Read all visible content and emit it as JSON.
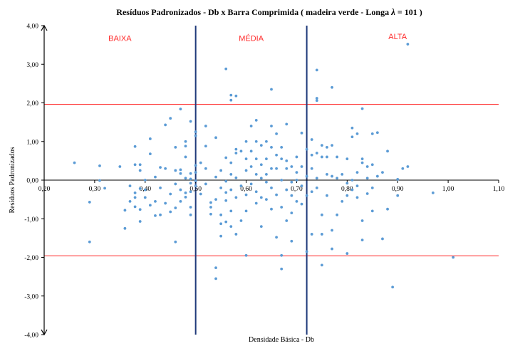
{
  "chart_data": {
    "type": "scatter",
    "title": "Resíduos Padronizados - Db x Barra Comprimida ( madeira verde - Longa",
    "title_symbol": "λ",
    "title_tail": " = 101 )",
    "xlabel": "Densidade Básica - Db",
    "ylabel": "Resíduos Padronizados",
    "xlim": [
      0.2,
      1.1
    ],
    "ylim": [
      -4,
      4
    ],
    "x_ticks": [
      "0,20",
      "0,30",
      "0,40",
      "0,50",
      "0,60",
      "0,70",
      "0,80",
      "0,90",
      "1,00",
      "1,10"
    ],
    "x_tick_values": [
      0.2,
      0.3,
      0.4,
      0.5,
      0.6,
      0.7,
      0.8,
      0.9,
      1.0,
      1.1
    ],
    "y_ticks": [
      "4,00",
      "3,00",
      "2,00",
      "1,00",
      "0,00",
      "-1,00",
      "-2,00",
      "-3,00",
      "-4,00"
    ],
    "y_tick_values": [
      4,
      3,
      2,
      1,
      0,
      -1,
      -2,
      -3,
      -4
    ],
    "grid": false,
    "reference_lines_y": [
      1.96,
      -1.96
    ],
    "reference_line_color": "#ff2020",
    "class_boundaries_x": [
      0.5,
      0.72
    ],
    "boundary_color": "#1f3a7a",
    "marker_color": "#5b9bd5",
    "zones": [
      "BAIXA",
      "MÉDIA",
      "ALTA"
    ],
    "series": [
      {
        "points": [
          [
            0.26,
            0.45
          ],
          [
            0.29,
            -0.57
          ],
          [
            0.29,
            -1.6
          ],
          [
            0.31,
            0.37
          ],
          [
            0.31,
            -0.01
          ],
          [
            0.32,
            -0.21
          ],
          [
            0.35,
            0.35
          ],
          [
            0.36,
            -0.78
          ],
          [
            0.36,
            -1.25
          ],
          [
            0.37,
            -0.15
          ],
          [
            0.37,
            -0.55
          ],
          [
            0.38,
            -0.69
          ],
          [
            0.38,
            0.87
          ],
          [
            0.38,
            0.4
          ],
          [
            0.38,
            -0.33
          ],
          [
            0.38,
            -0.45
          ],
          [
            0.39,
            0.4
          ],
          [
            0.39,
            0.25
          ],
          [
            0.39,
            -0.22
          ],
          [
            0.39,
            -0.76
          ],
          [
            0.39,
            -1.07
          ],
          [
            0.4,
            -0.25
          ],
          [
            0.4,
            -0.45
          ],
          [
            0.4,
            0.0
          ],
          [
            0.41,
            0.68
          ],
          [
            0.41,
            1.07
          ],
          [
            0.41,
            -0.65
          ],
          [
            0.42,
            0.08
          ],
          [
            0.42,
            -0.92
          ],
          [
            0.42,
            -0.55
          ],
          [
            0.43,
            0.33
          ],
          [
            0.43,
            -0.9
          ],
          [
            0.43,
            -0.2
          ],
          [
            0.44,
            1.43
          ],
          [
            0.44,
            0.3
          ],
          [
            0.44,
            -0.6
          ],
          [
            0.45,
            1.6
          ],
          [
            0.45,
            -0.82
          ],
          [
            0.45,
            -0.36
          ],
          [
            0.46,
            0.85
          ],
          [
            0.46,
            0.25
          ],
          [
            0.46,
            -0.1
          ],
          [
            0.46,
            -1.6
          ],
          [
            0.46,
            -0.72
          ],
          [
            0.47,
            1.84
          ],
          [
            0.47,
            0.17
          ],
          [
            0.47,
            0.27
          ],
          [
            0.47,
            -0.25
          ],
          [
            0.47,
            -0.55
          ],
          [
            0.48,
            1.0
          ],
          [
            0.48,
            0.6
          ],
          [
            0.48,
            0.88
          ],
          [
            0.48,
            0.05
          ],
          [
            0.48,
            -0.44
          ],
          [
            0.48,
            -0.33
          ],
          [
            0.49,
            1.52
          ],
          [
            0.49,
            0.17
          ],
          [
            0.49,
            0.03
          ],
          [
            0.49,
            -0.08
          ],
          [
            0.49,
            -0.3
          ],
          [
            0.49,
            -0.7
          ],
          [
            0.49,
            -0.9
          ],
          [
            0.5,
            1.25
          ],
          [
            0.5,
            1.15
          ],
          [
            0.5,
            0.38
          ],
          [
            0.5,
            0.2
          ],
          [
            0.5,
            -0.02
          ],
          [
            0.5,
            -0.15
          ],
          [
            0.51,
            0.45
          ],
          [
            0.51,
            -0.36
          ],
          [
            0.52,
            1.4
          ],
          [
            0.52,
            0.88
          ],
          [
            0.52,
            0.3
          ],
          [
            0.52,
            -0.1
          ],
          [
            0.53,
            -0.7
          ],
          [
            0.53,
            -0.88
          ],
          [
            0.53,
            -0.58
          ],
          [
            0.54,
            1.1
          ],
          [
            0.54,
            0.08
          ],
          [
            0.54,
            -0.5
          ],
          [
            0.54,
            -2.27
          ],
          [
            0.54,
            -2.55
          ],
          [
            0.55,
            0.25
          ],
          [
            0.55,
            -0.2
          ],
          [
            0.55,
            -0.9
          ],
          [
            0.55,
            -1.13
          ],
          [
            0.55,
            -1.45
          ],
          [
            0.56,
            2.88
          ],
          [
            0.56,
            0.58
          ],
          [
            0.56,
            -0.03
          ],
          [
            0.56,
            -0.32
          ],
          [
            0.56,
            -0.53
          ],
          [
            0.56,
            -1.08
          ],
          [
            0.57,
            0.45
          ],
          [
            0.57,
            2.2
          ],
          [
            0.57,
            2.07
          ],
          [
            0.57,
            0.15
          ],
          [
            0.57,
            -0.25
          ],
          [
            0.57,
            -0.8
          ],
          [
            0.57,
            -1.2
          ],
          [
            0.58,
            0.8
          ],
          [
            0.58,
            0.7
          ],
          [
            0.58,
            2.18
          ],
          [
            0.58,
            0.06
          ],
          [
            0.58,
            -0.45
          ],
          [
            0.58,
            -1.4
          ],
          [
            0.59,
            0.75
          ],
          [
            0.59,
            -0.15
          ],
          [
            0.59,
            -1.05
          ],
          [
            0.6,
            0.55
          ],
          [
            0.6,
            1.0
          ],
          [
            0.6,
            0.25
          ],
          [
            0.6,
            -0.38
          ],
          [
            0.6,
            -0.8
          ],
          [
            0.6,
            -1.95
          ],
          [
            0.61,
            1.4
          ],
          [
            0.61,
            0.35
          ],
          [
            0.61,
            0.75
          ],
          [
            0.61,
            -0.1
          ],
          [
            0.62,
            1.55
          ],
          [
            0.62,
            1.0
          ],
          [
            0.62,
            0.55
          ],
          [
            0.62,
            0.15
          ],
          [
            0.62,
            -0.3
          ],
          [
            0.62,
            -0.6
          ],
          [
            0.63,
            0.9
          ],
          [
            0.63,
            0.4
          ],
          [
            0.63,
            0.05
          ],
          [
            0.63,
            -0.45
          ],
          [
            0.63,
            -1.2
          ],
          [
            0.64,
            1.0
          ],
          [
            0.64,
            0.55
          ],
          [
            0.64,
            0.15
          ],
          [
            0.64,
            -0.05
          ],
          [
            0.64,
            -0.5
          ],
          [
            0.65,
            1.4
          ],
          [
            0.65,
            2.35
          ],
          [
            0.65,
            0.85
          ],
          [
            0.65,
            0.3
          ],
          [
            0.65,
            -0.2
          ],
          [
            0.65,
            -0.75
          ],
          [
            0.66,
            1.2
          ],
          [
            0.66,
            0.65
          ],
          [
            0.66,
            0.3
          ],
          [
            0.66,
            -0.38
          ],
          [
            0.66,
            -1.48
          ],
          [
            0.67,
            0.85
          ],
          [
            0.67,
            0.55
          ],
          [
            0.67,
            0.0
          ],
          [
            0.67,
            -0.7
          ],
          [
            0.67,
            -1.95
          ],
          [
            0.67,
            -2.3
          ],
          [
            0.68,
            1.45
          ],
          [
            0.68,
            0.5
          ],
          [
            0.68,
            0.3
          ],
          [
            0.68,
            -0.25
          ],
          [
            0.68,
            -1.05
          ],
          [
            0.69,
            0.35
          ],
          [
            0.69,
            -0.05
          ],
          [
            0.69,
            -0.4
          ],
          [
            0.69,
            -0.85
          ],
          [
            0.69,
            -1.58
          ],
          [
            0.7,
            0.6
          ],
          [
            0.7,
            0.2
          ],
          [
            0.7,
            0.0
          ],
          [
            0.7,
            -0.55
          ],
          [
            0.71,
            1.22
          ],
          [
            0.71,
            0.35
          ],
          [
            0.71,
            -0.15
          ],
          [
            0.71,
            -0.62
          ],
          [
            0.72,
            0.8
          ],
          [
            0.72,
            0.1
          ],
          [
            0.72,
            -0.4
          ],
          [
            0.72,
            -1.85
          ],
          [
            0.73,
            1.05
          ],
          [
            0.73,
            0.65
          ],
          [
            0.73,
            0.3
          ],
          [
            0.73,
            -0.3
          ],
          [
            0.73,
            -1.4
          ],
          [
            0.74,
            2.85
          ],
          [
            0.74,
            2.12
          ],
          [
            0.74,
            2.06
          ],
          [
            0.74,
            0.7
          ],
          [
            0.74,
            0.05
          ],
          [
            0.74,
            -0.2
          ],
          [
            0.75,
            0.9
          ],
          [
            0.75,
            0.6
          ],
          [
            0.75,
            -0.9
          ],
          [
            0.75,
            -1.4
          ],
          [
            0.75,
            -2.2
          ],
          [
            0.76,
            0.85
          ],
          [
            0.76,
            0.6
          ],
          [
            0.76,
            0.15
          ],
          [
            0.76,
            -0.4
          ],
          [
            0.77,
            2.4
          ],
          [
            0.77,
            0.9
          ],
          [
            0.77,
            0.1
          ],
          [
            0.77,
            -1.3
          ],
          [
            0.77,
            -1.78
          ],
          [
            0.78,
            0.6
          ],
          [
            0.78,
            0.05
          ],
          [
            0.78,
            -0.9
          ],
          [
            0.79,
            0.15
          ],
          [
            0.79,
            -0.55
          ],
          [
            0.8,
            0.55
          ],
          [
            0.8,
            -0.08
          ],
          [
            0.8,
            -0.4
          ],
          [
            0.8,
            -1.9
          ],
          [
            0.81,
            1.35
          ],
          [
            0.81,
            1.12
          ],
          [
            0.81,
            0.0
          ],
          [
            0.81,
            -0.25
          ],
          [
            0.82,
            1.2
          ],
          [
            0.82,
            0.2
          ],
          [
            0.82,
            -0.15
          ],
          [
            0.82,
            -0.45
          ],
          [
            0.83,
            1.85
          ],
          [
            0.83,
            0.55
          ],
          [
            0.83,
            0.45
          ],
          [
            0.83,
            -1.05
          ],
          [
            0.83,
            -1.55
          ],
          [
            0.84,
            0.35
          ],
          [
            0.84,
            0.05
          ],
          [
            0.84,
            -0.35
          ],
          [
            0.85,
            1.2
          ],
          [
            0.85,
            0.4
          ],
          [
            0.85,
            -0.2
          ],
          [
            0.85,
            -0.8
          ],
          [
            0.86,
            1.23
          ],
          [
            0.86,
            0.1
          ],
          [
            0.87,
            0.2
          ],
          [
            0.87,
            -1.52
          ],
          [
            0.88,
            0.75
          ],
          [
            0.88,
            -0.75
          ],
          [
            0.89,
            -2.77
          ],
          [
            0.9,
            0.02
          ],
          [
            0.9,
            -0.4
          ],
          [
            0.91,
            0.3
          ],
          [
            0.92,
            0.35
          ],
          [
            0.92,
            3.52
          ],
          [
            0.97,
            -0.33
          ],
          [
            1.01,
            -2.0
          ]
        ]
      }
    ]
  }
}
